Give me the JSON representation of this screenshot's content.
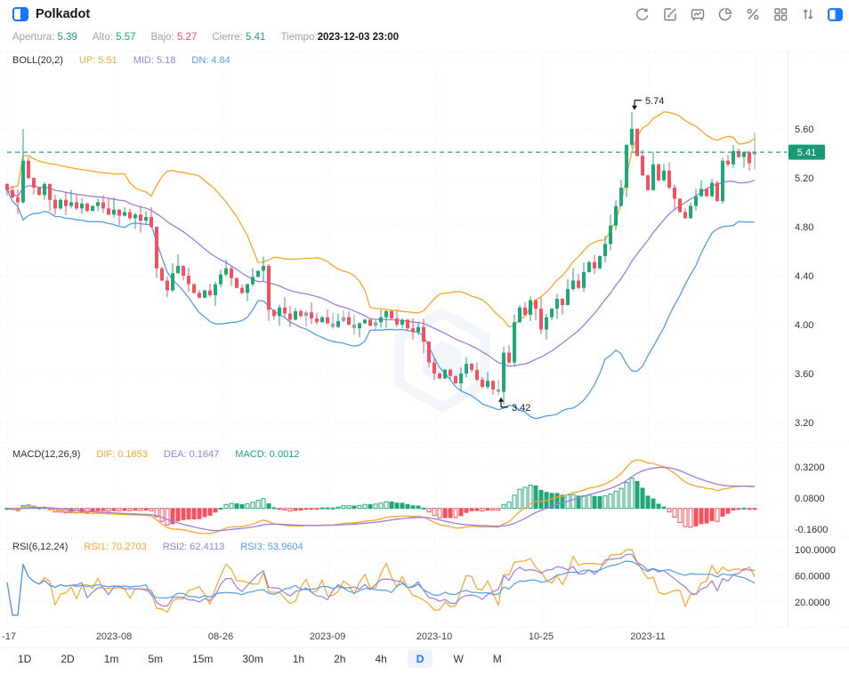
{
  "header": {
    "title": "Polkadot",
    "toolbar_icons": [
      "refresh",
      "draw",
      "board-chart",
      "pie-indicator",
      "percent",
      "layout-grid",
      "sort-arrows",
      "panel-split"
    ]
  },
  "info_bar": {
    "open_label": "Apertura:",
    "open": "5.39",
    "high_label": "Alto:",
    "high": "5.57",
    "low_label": "Bajo:",
    "low": "5.27",
    "close_label": "Cierre:",
    "close": "5.41",
    "time_label": "Tiempo:",
    "time": "2023-12-03 23:00"
  },
  "legends": {
    "boll": {
      "name": "BOLL(20,2)",
      "up": "UP: 5.51",
      "mid": "MID: 5.18",
      "dn": "DN: 4.84"
    },
    "macd": {
      "name": "MACD(12,26,9)",
      "dif": "DIF: 0.1653",
      "dea": "DEA: 0.1647",
      "macd": "MACD: 0.0012"
    },
    "rsi": {
      "name": "RSI(6,12,24)",
      "rsi1": "RSI1: 70.2703",
      "rsi2": "RSI2: 62.4113",
      "rsi3": "RSI3: 53.9604"
    }
  },
  "timeframes": {
    "items": [
      "1D",
      "2D",
      "1m",
      "5m",
      "15m",
      "30m",
      "1h",
      "2h",
      "4h",
      "D",
      "W",
      "M"
    ],
    "selected": "D"
  },
  "colors": {
    "up": "#21a67a",
    "down": "#f0525f",
    "neutral": "#9aa0a6",
    "orange": "#f7a628",
    "purple": "#9b7dde",
    "blue": "#539de5",
    "accent": "#1677ff",
    "grid": "#e9edf2",
    "axis_text": "#2b3139",
    "badge": "#189a77",
    "watermark": "#edf4fb"
  },
  "chart_data": {
    "type": "candlestick+indicators",
    "title": "Polkadot daily candles with BOLL(20,2), MACD(12,26,9), RSI(6,12,24)",
    "first_open": 5.15,
    "closes": [
      5.1,
      5.04,
      5.0,
      5.34,
      5.2,
      5.12,
      5.06,
      5.15,
      5.02,
      4.95,
      5.02,
      4.97,
      5.0,
      4.95,
      4.99,
      4.93,
      4.97,
      5.0,
      4.95,
      4.9,
      4.94,
      4.89,
      4.92,
      4.87,
      4.9,
      4.85,
      4.88,
      4.8,
      4.46,
      4.36,
      4.28,
      4.42,
      4.48,
      4.4,
      4.33,
      4.26,
      4.22,
      4.28,
      4.24,
      4.33,
      4.41,
      4.46,
      4.38,
      4.3,
      4.26,
      4.33,
      4.39,
      4.44,
      4.48,
      4.12,
      4.07,
      4.14,
      4.09,
      4.04,
      4.11,
      4.07,
      4.1,
      4.05,
      4.02,
      4.06,
      4.01,
      3.98,
      4.03,
      4.06,
      4.0,
      3.97,
      4.01,
      4.04,
      3.99,
      4.02,
      4.06,
      4.11,
      4.05,
      4.0,
      4.04,
      3.97,
      3.94,
      3.98,
      3.86,
      3.69,
      3.6,
      3.56,
      3.63,
      3.58,
      3.52,
      3.6,
      3.68,
      3.63,
      3.55,
      3.49,
      3.54,
      3.47,
      3.45,
      3.77,
      3.69,
      4.02,
      4.14,
      4.08,
      4.2,
      4.13,
      3.96,
      4.06,
      4.13,
      4.21,
      4.16,
      4.29,
      4.36,
      4.3,
      4.43,
      4.51,
      4.46,
      4.56,
      4.66,
      4.81,
      4.97,
      5.12,
      5.47,
      5.6,
      5.38,
      5.22,
      5.1,
      5.31,
      5.18,
      5.26,
      5.12,
      5.03,
      4.92,
      4.87,
      4.97,
      5.05,
      5.11,
      5.05,
      5.16,
      5.01,
      5.34,
      5.31,
      5.42,
      5.37,
      5.41,
      5.32,
      5.41
    ],
    "overrides": {
      "3": {
        "high": 5.6
      },
      "92": {
        "low": 3.42
      },
      "117": {
        "high": 5.74
      },
      "140": {
        "open": 5.39,
        "high": 5.57,
        "low": 5.27,
        "close": 5.41
      }
    },
    "indicator_params": {
      "boll": [
        20,
        2
      ],
      "macd": [
        12,
        26,
        9
      ],
      "rsi": [
        6,
        12,
        24
      ]
    },
    "last_price": "5.41",
    "last_price_value": 5.41,
    "high_annotation": {
      "candle": 117,
      "price": 5.74,
      "label": "5.74"
    },
    "low_annotation": {
      "candle": 92,
      "price": 3.42,
      "label": "3.42"
    },
    "price_axis_ticks": [
      {
        "value": 5.6,
        "label": "5.60"
      },
      {
        "value": 5.2,
        "label": "5.20"
      },
      {
        "value": 4.8,
        "label": "4.80"
      },
      {
        "value": 4.4,
        "label": "4.40"
      },
      {
        "value": 4.0,
        "label": "4.00"
      },
      {
        "value": 3.6,
        "label": "3.60"
      },
      {
        "value": 3.2,
        "label": "3.20"
      }
    ],
    "macd_axis_ticks": [
      {
        "value": 0.32,
        "label": "0.3200"
      },
      {
        "value": 0.08,
        "label": "0.0800"
      },
      {
        "value": -0.16,
        "label": "-0.1600"
      }
    ],
    "rsi_axis_ticks": [
      {
        "value": 100,
        "label": "100.0000"
      },
      {
        "value": 60,
        "label": "60.0000"
      },
      {
        "value": 20,
        "label": "20.0000"
      }
    ],
    "x_ticks": [
      {
        "candle": 0,
        "label": "-17"
      },
      {
        "candle": 20,
        "label": "2023-08"
      },
      {
        "candle": 40,
        "label": "08-26"
      },
      {
        "candle": 60,
        "label": "2023-09"
      },
      {
        "candle": 80,
        "label": "2023-10"
      },
      {
        "candle": 100,
        "label": "10-25"
      },
      {
        "candle": 120,
        "label": "2023-11"
      },
      {
        "candle": 140,
        "label": ""
      }
    ]
  }
}
